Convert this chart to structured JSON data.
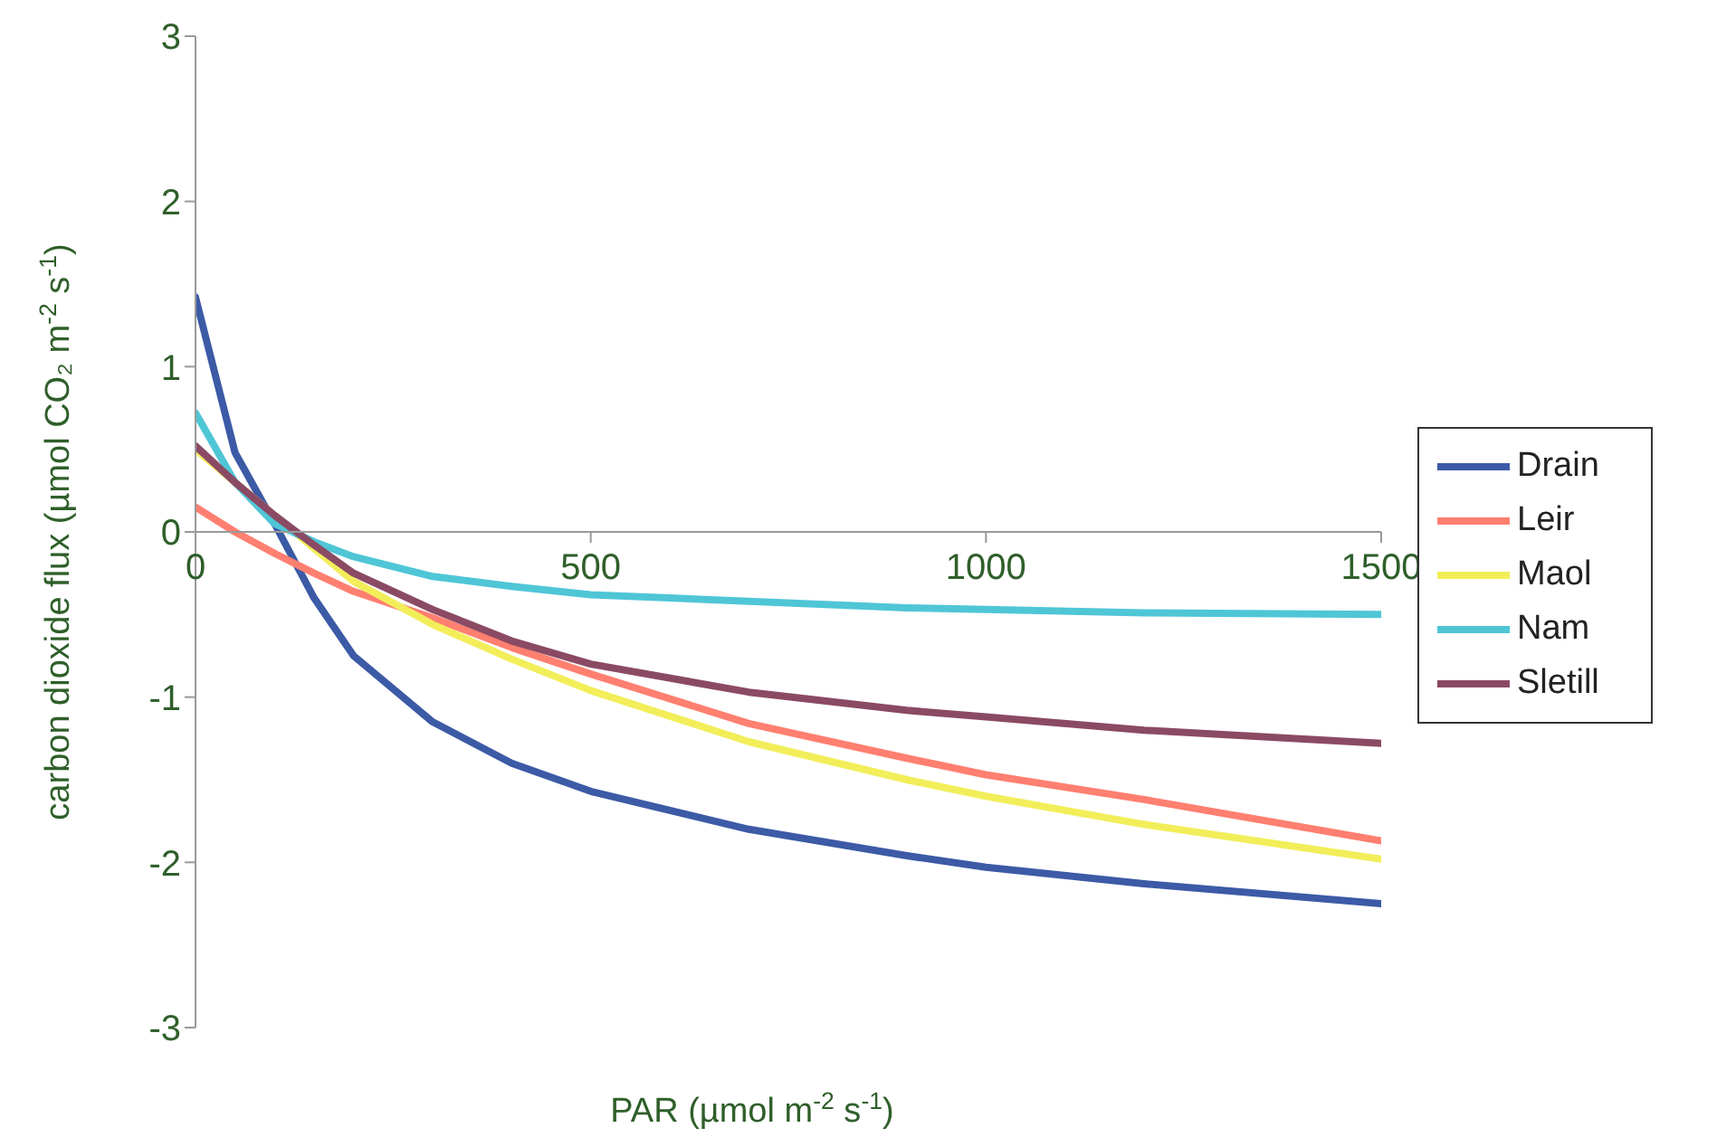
{
  "chart_data": {
    "type": "line",
    "xlabel": "PAR (µmol m$^{-2}$ s$^{-1}$)",
    "ylabel": "carbon dioxide flux (µmol CO₂ m$^{-2}$ s$^{-1}$)",
    "x": [
      0,
      50,
      100,
      150,
      200,
      300,
      400,
      500,
      700,
      900,
      1000,
      1200,
      1500
    ],
    "series": [
      {
        "name": "Drain",
        "color": "#3c5aa6",
        "values": [
          1.42,
          0.48,
          0.05,
          -0.4,
          -0.75,
          -1.15,
          -1.4,
          -1.57,
          -1.8,
          -1.96,
          -2.03,
          -2.13,
          -2.25
        ]
      },
      {
        "name": "Leir",
        "color": "#ff7f70",
        "values": [
          0.15,
          0.0,
          -0.13,
          -0.25,
          -0.36,
          -0.52,
          -0.7,
          -0.86,
          -1.16,
          -1.37,
          -1.47,
          -1.62,
          -1.87
        ]
      },
      {
        "name": "Maol",
        "color": "#f2ee5a",
        "values": [
          0.5,
          0.3,
          0.1,
          -0.1,
          -0.3,
          -0.56,
          -0.77,
          -0.96,
          -1.27,
          -1.5,
          -1.6,
          -1.77,
          -1.98
        ]
      },
      {
        "name": "Nam",
        "color": "#4fc6d6",
        "values": [
          0.72,
          0.3,
          0.05,
          -0.06,
          -0.15,
          -0.27,
          -0.33,
          -0.38,
          -0.42,
          -0.46,
          -0.47,
          -0.49,
          -0.5
        ]
      },
      {
        "name": "Sletill",
        "color": "#8b4a64",
        "values": [
          0.52,
          0.3,
          0.1,
          -0.08,
          -0.25,
          -0.47,
          -0.66,
          -0.8,
          -0.97,
          -1.08,
          -1.12,
          -1.2,
          -1.28
        ]
      }
    ],
    "xlim": [
      0,
      1500
    ],
    "xticks": [
      0,
      500,
      1000,
      1500
    ],
    "ylim": [
      -3,
      3
    ],
    "yticks": [
      -3,
      -2,
      -1,
      0,
      1,
      2,
      3
    ],
    "grid": false,
    "legend": "right",
    "marker": "none",
    "line_style": "solid"
  }
}
